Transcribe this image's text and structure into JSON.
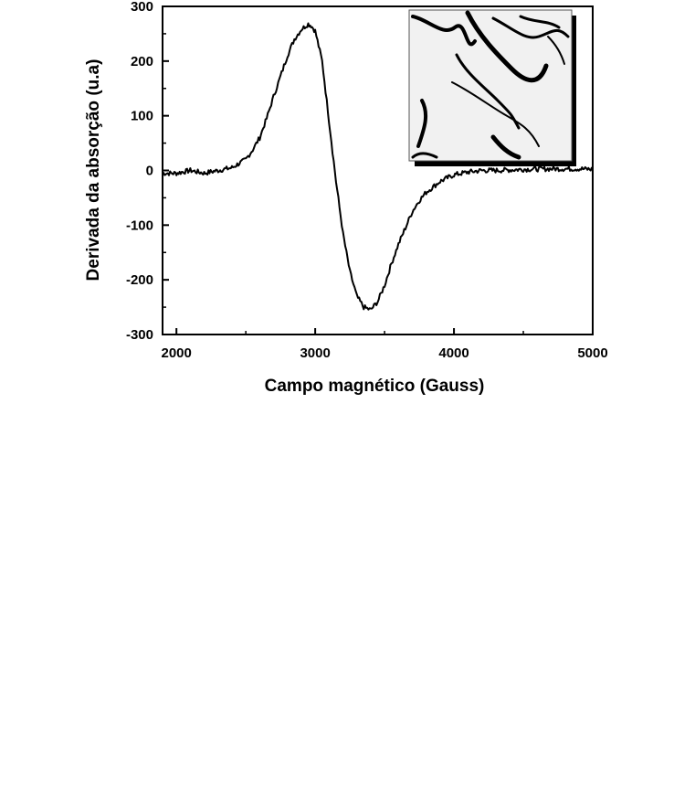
{
  "chart_data": {
    "type": "line",
    "title": "",
    "xlabel": "Campo magnético (Gauss)",
    "ylabel": "Derivada da absorção (u.a)",
    "xlim": [
      1900,
      5000
    ],
    "ylim": [
      -300,
      300
    ],
    "xticks": [
      2000,
      3000,
      4000,
      5000
    ],
    "xtick_labels": [
      "2000",
      "3000",
      "4000",
      "5000"
    ],
    "yticks": [
      -300,
      -200,
      -100,
      0,
      100,
      200,
      300
    ],
    "ytick_labels": [
      "-300",
      "-200",
      "-100",
      "0",
      "100",
      "200",
      "300"
    ],
    "grid": false,
    "legend": "none",
    "series": [
      {
        "color": "#000000",
        "x": [
          1900,
          2000,
          2100,
          2200,
          2300,
          2400,
          2500,
          2550,
          2600,
          2650,
          2700,
          2750,
          2800,
          2850,
          2900,
          2950,
          2970,
          3000,
          3050,
          3100,
          3150,
          3200,
          3250,
          3300,
          3350,
          3400,
          3450,
          3500,
          3550,
          3600,
          3650,
          3700,
          3750,
          3800,
          3850,
          3900,
          4000,
          4100,
          4200,
          4300,
          4500,
          4700,
          4900,
          5000
        ],
        "y": [
          -5,
          -5,
          0,
          -5,
          0,
          5,
          20,
          38,
          60,
          95,
          135,
          172,
          210,
          240,
          258,
          268,
          265,
          255,
          200,
          90,
          -20,
          -115,
          -185,
          -230,
          -250,
          -255,
          -240,
          -210,
          -170,
          -135,
          -105,
          -75,
          -55,
          -40,
          -30,
          -20,
          -8,
          -3,
          0,
          0,
          2,
          3,
          3,
          2
        ]
      }
    ],
    "inset": {
      "type": "image",
      "description_label": ""
    }
  }
}
